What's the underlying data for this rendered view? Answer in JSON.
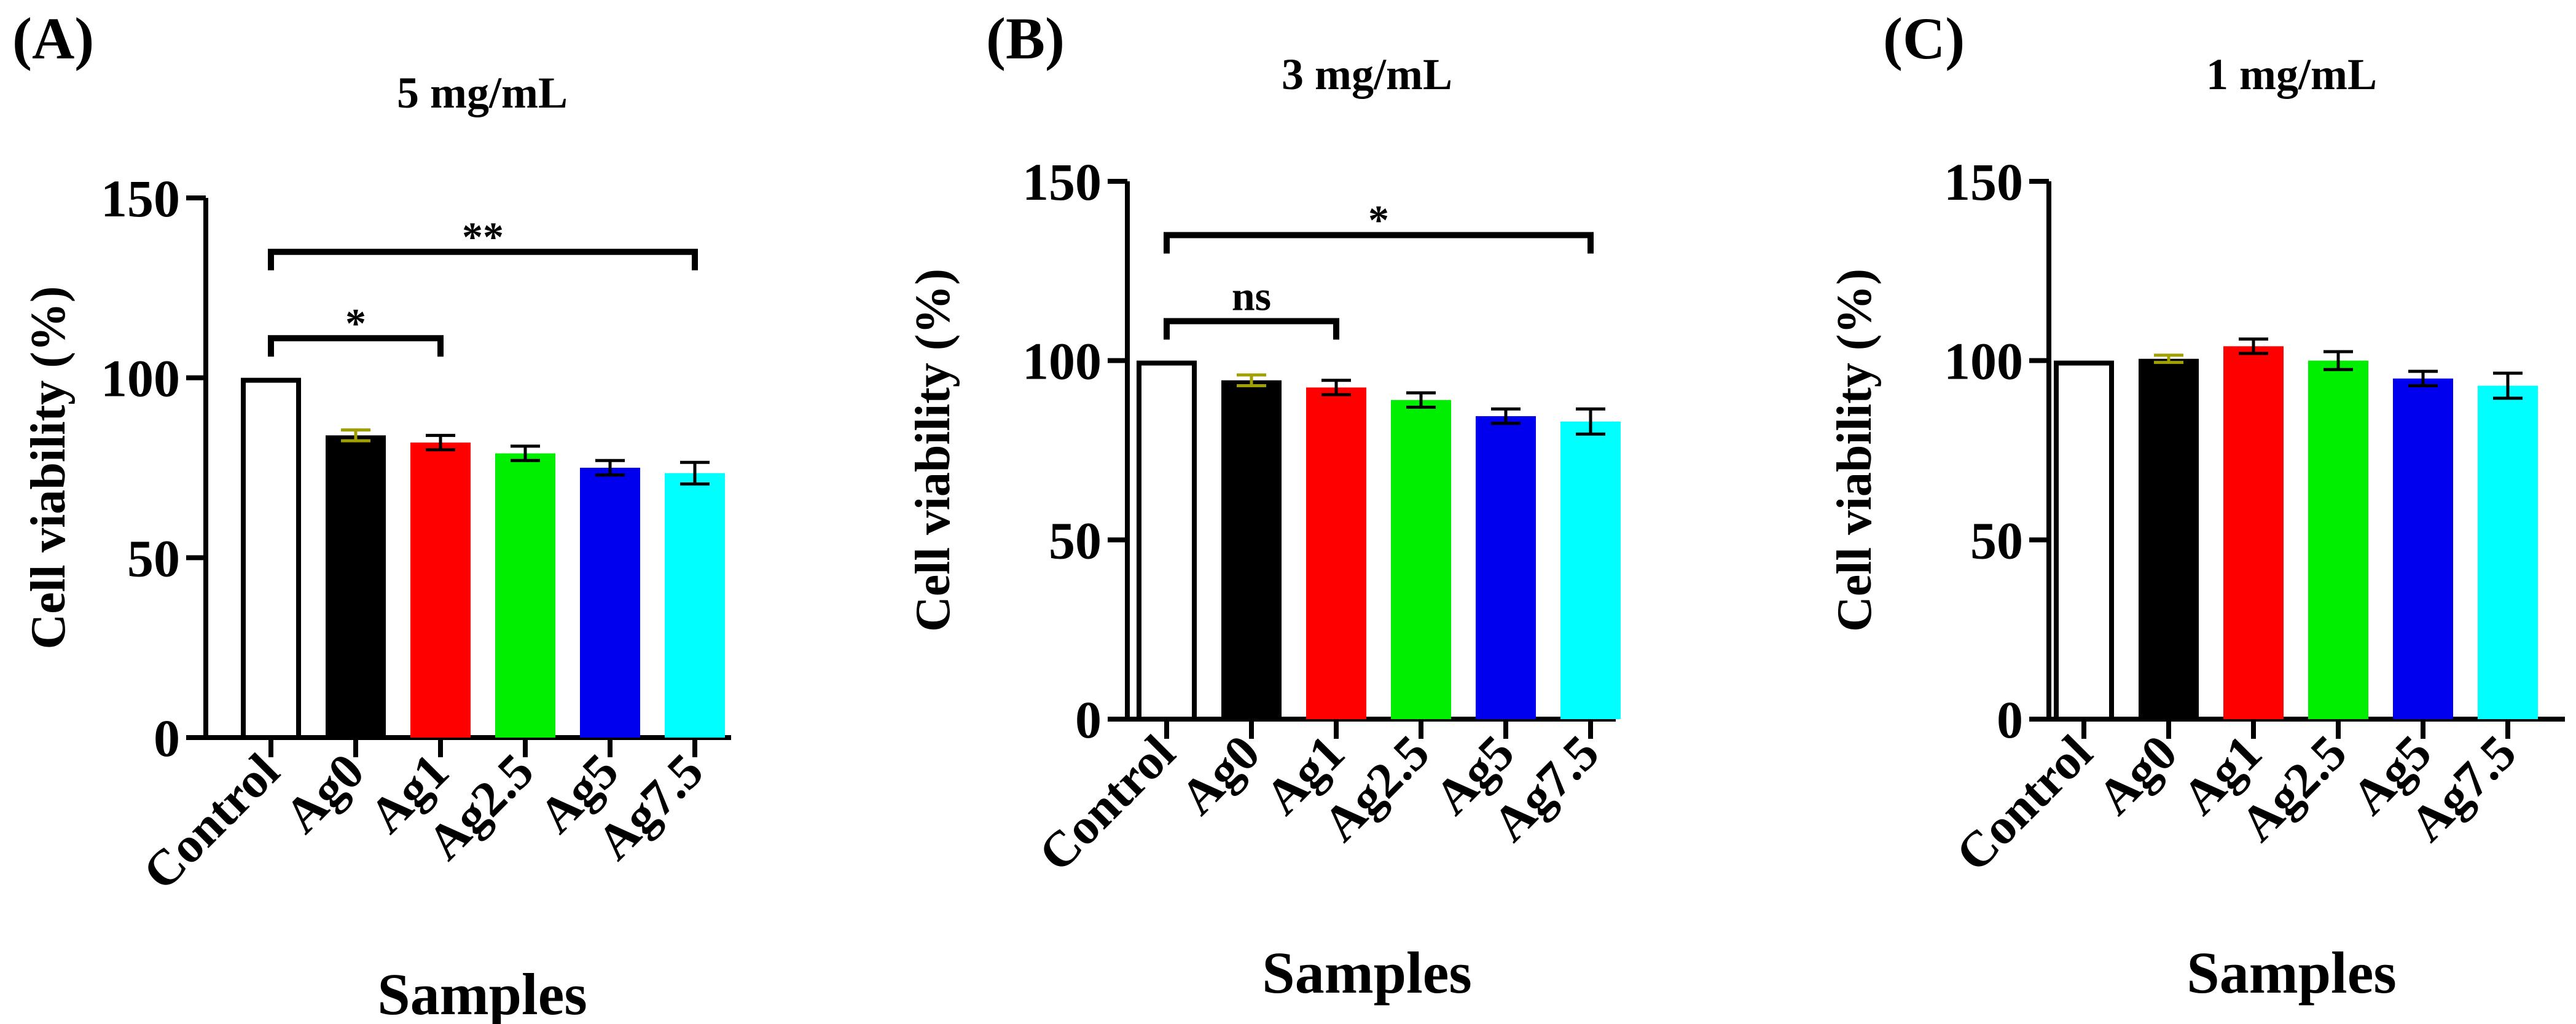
{
  "chart_data": [
    {
      "panel_label": "(A)",
      "type": "bar",
      "title": "5 mg/mL",
      "xlabel": "Samples",
      "ylabel": "Cell viability (%)",
      "ylim": [
        0,
        150
      ],
      "yticks": [
        0,
        50,
        100,
        150
      ],
      "categories": [
        "Control",
        "Ag0",
        "Ag1",
        "Ag2.5",
        "Ag5",
        "Ag7.5"
      ],
      "values": [
        100,
        84,
        82,
        79,
        75,
        73.5
      ],
      "errors": [
        0,
        1.5,
        2,
        2,
        2,
        3
      ],
      "colors": [
        "#ffffff",
        "#000000",
        "#ff0000",
        "#00ee00",
        "#0000ee",
        "#00ffff"
      ],
      "error_colors": [
        "#000000",
        "#a0a000",
        "#000000",
        "#000000",
        "#000000",
        "#000000"
      ],
      "significance": [
        {
          "from": 0,
          "to": 5,
          "label": "**",
          "y": 135
        },
        {
          "from": 0,
          "to": 2,
          "label": "*",
          "y": 111
        }
      ]
    },
    {
      "panel_label": "(B)",
      "type": "bar",
      "title": "3 mg/mL",
      "xlabel": "Samples",
      "ylabel": "Cell viability (%)",
      "ylim": [
        0,
        150
      ],
      "yticks": [
        0,
        50,
        100,
        150
      ],
      "categories": [
        "Control",
        "Ag0",
        "Ag1",
        "Ag2.5",
        "Ag5",
        "Ag7.5"
      ],
      "values": [
        100,
        94.5,
        92.5,
        89,
        84.5,
        83
      ],
      "errors": [
        0,
        1.5,
        2,
        2,
        2,
        3.5
      ],
      "colors": [
        "#ffffff",
        "#000000",
        "#ff0000",
        "#00ee00",
        "#0000ee",
        "#00ffff"
      ],
      "error_colors": [
        "#000000",
        "#a0a000",
        "#000000",
        "#000000",
        "#000000",
        "#000000"
      ],
      "significance": [
        {
          "from": 0,
          "to": 5,
          "label": "*",
          "y": 135
        },
        {
          "from": 0,
          "to": 2,
          "label": "ns",
          "y": 111
        }
      ]
    },
    {
      "panel_label": "(C)",
      "type": "bar",
      "title": "1 mg/mL",
      "xlabel": "Samples",
      "ylabel": "Cell viability (%)",
      "ylim": [
        0,
        150
      ],
      "yticks": [
        0,
        50,
        100,
        150
      ],
      "categories": [
        "Control",
        "Ag0",
        "Ag1",
        "Ag2.5",
        "Ag5",
        "Ag7.5"
      ],
      "values": [
        100,
        100.5,
        104,
        100,
        95,
        93
      ],
      "errors": [
        0,
        1,
        2,
        2.5,
        2,
        3.5
      ],
      "colors": [
        "#ffffff",
        "#000000",
        "#ff0000",
        "#00ee00",
        "#0000ee",
        "#00ffff"
      ],
      "error_colors": [
        "#000000",
        "#a0a000",
        "#000000",
        "#000000",
        "#000000",
        "#000000"
      ],
      "significance": []
    }
  ]
}
